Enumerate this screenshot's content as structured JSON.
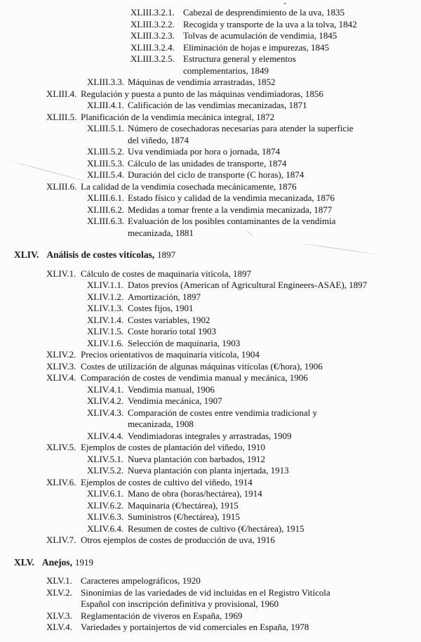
{
  "colors": {
    "paper": "#fcfcfa",
    "ink": "#222222"
  },
  "toc": {
    "sections": [
      {
        "id": "xliii-continued",
        "heading": null,
        "entries": [
          {
            "level": 4,
            "number": "XLIII.3.2.1.",
            "lines": [
              "Cabezal de desprendimiento de la uva, 1835"
            ]
          },
          {
            "level": 4,
            "number": "XLIII.3.2.2.",
            "lines": [
              "Recogida y transporte de la uva a la tolva, 1842"
            ]
          },
          {
            "level": 4,
            "number": "XLIII.3.2.3.",
            "lines": [
              "Tolvas de acumulación de vendimia, 1845"
            ]
          },
          {
            "level": 4,
            "number": "XLIII.3.2.4.",
            "lines": [
              "Eliminación de hojas e impurezas, 1845"
            ]
          },
          {
            "level": 4,
            "number": "XLIII.3.2.5.",
            "lines": [
              "Estructura general y elementos",
              "complementarios, 1849"
            ]
          },
          {
            "level": 3,
            "number": "XLIII.3.3.",
            "lines": [
              "Máquinas de vendimia arrastradas, 1852"
            ]
          },
          {
            "level": 2,
            "number": "XLIII.4.",
            "lines": [
              "Regulación y puesta a punto de las máquinas vendimiadoras, 1856"
            ]
          },
          {
            "level": 3,
            "number": "XLIII.4.1.",
            "lines": [
              "Calificación de las vendimias mecanizadas, 1871"
            ]
          },
          {
            "level": 2,
            "number": "XLIII.5.",
            "lines": [
              "Planificación de la vendimia mecánica integral, 1872"
            ]
          },
          {
            "level": 3,
            "number": "XLIII.5.1.",
            "lines": [
              "Número de cosechadoras necesarias para atender la superficie",
              "del viñedo, 1874"
            ]
          },
          {
            "level": 3,
            "number": "XLIII.5.2.",
            "lines": [
              "Uva vendimiada por hora o jornada, 1874"
            ]
          },
          {
            "level": 3,
            "number": "XLIII.5.3.",
            "lines": [
              "Cálculo de las unidades de transporte, 1874"
            ]
          },
          {
            "level": 3,
            "number": "XLIII.5.4.",
            "lines": [
              "Duración del ciclo de transporte (C horas), 1874"
            ]
          },
          {
            "level": 2,
            "number": "XLIII.6.",
            "lines": [
              "La calidad de la vendimia cosechada mecánicamente, 1876"
            ]
          },
          {
            "level": 3,
            "number": "XLIII.6.1.",
            "lines": [
              "Estado físico y calidad de la vendimia mecanizada, 1876"
            ]
          },
          {
            "level": 3,
            "number": "XLIII.6.2.",
            "lines": [
              "Medidas a tomar frente a la vendimia mecanizada, 1877"
            ]
          },
          {
            "level": 3,
            "number": "XLIII.6.3.",
            "lines": [
              "Evaluación de los posibles contaminantes de la vendimia",
              "mecanizada, 1881"
            ]
          }
        ]
      },
      {
        "id": "xliv",
        "heading": {
          "number": "XLIV.",
          "title": "Análisis de costes vitícolas,",
          "page": "1897"
        },
        "entries": [
          {
            "level": 2,
            "number": "XLIV.1.",
            "lines": [
              "Cálculo de costes de maquinaria vitícola, 1897"
            ]
          },
          {
            "level": 3,
            "number": "XLIV.1.1.",
            "lines": [
              "Datos previos (American of Agricultural Engineers-ASAE), 1897"
            ]
          },
          {
            "level": 3,
            "number": "XLIV.1.2.",
            "lines": [
              "Amortización, 1897"
            ]
          },
          {
            "level": 3,
            "number": "XLIV.1.3.",
            "lines": [
              "Costes fijos, 1901"
            ]
          },
          {
            "level": 3,
            "number": "XLIV.1.4.",
            "lines": [
              "Costes variables, 1902"
            ]
          },
          {
            "level": 3,
            "number": "XLIV.1.5.",
            "lines": [
              "Coste horario total 1903"
            ]
          },
          {
            "level": 3,
            "number": "XLIV.1.6.",
            "lines": [
              "Selección de maquinaria, 1903"
            ]
          },
          {
            "level": 2,
            "number": "XLIV.2.",
            "lines": [
              "Precios orientativos de maquinaria vitícola, 1904"
            ]
          },
          {
            "level": 2,
            "number": "XLIV.3.",
            "lines": [
              "Costes de utilización de algunas máquinas vitícolas (€/hora), 1906"
            ]
          },
          {
            "level": 2,
            "number": "XLIV.4.",
            "lines": [
              "Comparación de costes de vendimia manual y mecánica, 1906"
            ]
          },
          {
            "level": 3,
            "number": "XLIV.4.1.",
            "lines": [
              "Vendimia manual, 1906"
            ]
          },
          {
            "level": 3,
            "number": "XLIV.4.2.",
            "lines": [
              "Vendimia mecánica, 1907"
            ]
          },
          {
            "level": 3,
            "number": "XLIV.4.3.",
            "lines": [
              "Comparación de costes entre vendimia tradicional y",
              "mecanizada, 1908"
            ]
          },
          {
            "level": 3,
            "number": "XLIV.4.4.",
            "lines": [
              "Vendimiadoras integrales y arrastradas, 1909"
            ]
          },
          {
            "level": 2,
            "number": "XLIV.5.",
            "lines": [
              "Ejemplos de costes de plantación del viñedo, 1910"
            ]
          },
          {
            "level": 3,
            "number": "XLIV.5.1.",
            "lines": [
              "Nueva plantación con barbados, 1912"
            ]
          },
          {
            "level": 3,
            "number": "XLIV.5.2.",
            "lines": [
              "Nueva plantación con planta injertada, 1913"
            ]
          },
          {
            "level": 2,
            "number": "XLIV.6.",
            "lines": [
              "Ejemplos de costes de cultivo del viñedo, 1914"
            ]
          },
          {
            "level": 3,
            "number": "XLIV.6.1.",
            "lines": [
              "Mano de obra (horas/hectárea), 1914"
            ]
          },
          {
            "level": 3,
            "number": "XLIV.6.2.",
            "lines": [
              "Maquinaria (€/hectárea), 1915"
            ]
          },
          {
            "level": 3,
            "number": "XLIV.6.3.",
            "lines": [
              "Suministros (€/hectárea), 1915"
            ]
          },
          {
            "level": 3,
            "number": "XLIV.6.4.",
            "lines": [
              "Resumen de costes de cultivo (€/hectárea), 1915"
            ]
          },
          {
            "level": 2,
            "number": "XLIV.7.",
            "lines": [
              "Otros ejemplos de costes de producción de uva, 1916"
            ]
          }
        ]
      },
      {
        "id": "xlv",
        "heading": {
          "number": "XLV.",
          "title": "Anejos,",
          "page": "1919"
        },
        "entries": [
          {
            "level": 2,
            "number": "XLV.1.",
            "lines": [
              "Caracteres ampelográficos, 1920"
            ]
          },
          {
            "level": 2,
            "number": "XLV.2.",
            "lines": [
              "Sinonimias de las variedades de vid incluidas en el Registro Vitícola",
              "Español con inscripción definitiva y provisional, 1960"
            ]
          },
          {
            "level": 2,
            "number": "XLV.3.",
            "lines": [
              "Reglamentación de viveros en España, 1969"
            ]
          },
          {
            "level": 2,
            "number": "XLV.4.",
            "lines": [
              "Variedades y portainjertos de vid comerciales en España, 1978"
            ]
          }
        ]
      }
    ]
  }
}
